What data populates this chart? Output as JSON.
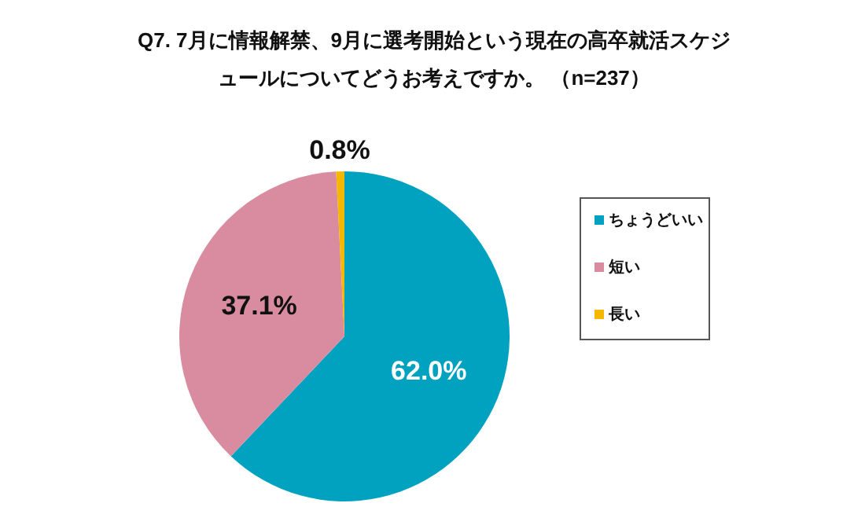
{
  "chart_data": {
    "type": "pie",
    "title": "Q7.  7月に情報解禁、9月に選考開始という現在の高卒就活スケジュールについてどうお考えですか。 （n=237）",
    "categories": [
      "ちょうどいい",
      "短い",
      "長い"
    ],
    "values": [
      62.0,
      37.1,
      0.8
    ],
    "colors": [
      "#00a2bf",
      "#d98ca0",
      "#f5b800"
    ],
    "value_labels": [
      "62.0%",
      "37.1%",
      "0.8%"
    ],
    "legend": "right"
  }
}
